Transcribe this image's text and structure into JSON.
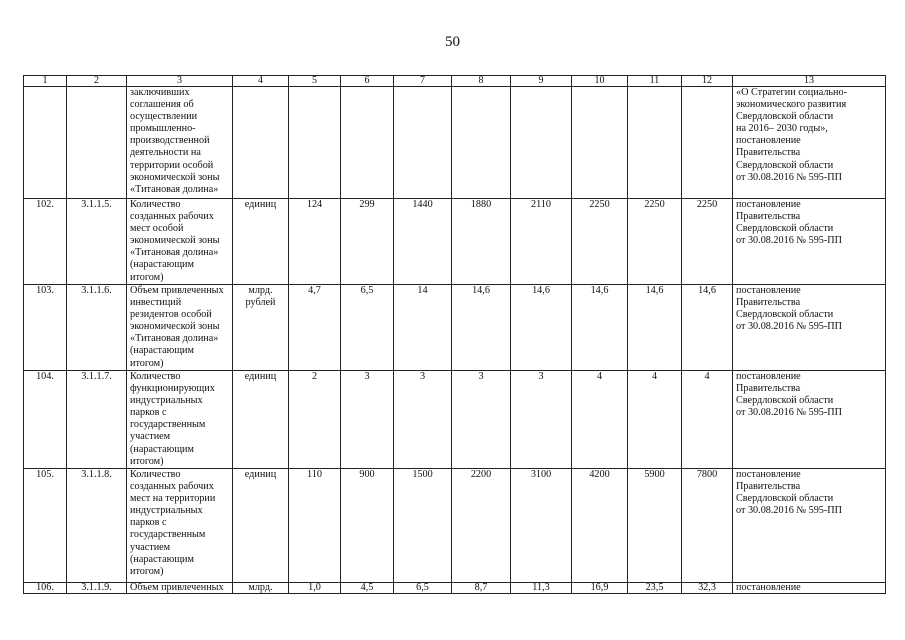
{
  "page_number": "50",
  "header": [
    "1",
    "2",
    "3",
    "4",
    "5",
    "6",
    "7",
    "8",
    "9",
    "10",
    "11",
    "12",
    "13"
  ],
  "rows": [
    {
      "cells": [
        "",
        "",
        "заключивших\nсоглашения об\nосуществлении\nпромышленно-\nпроизводственной\nдеятельности на\nтерритории особой\nэкономической зоны\n«Титановая долина»",
        "",
        "",
        "",
        "",
        "",
        "",
        "",
        "",
        "",
        "«О Стратегии социально-\nэкономического развития\nСвердловской области\nна 2016– 2030 годы»,\nпостановление\nПравительства\nСвердловской области\nот 30.08.2016 № 595-ПП"
      ]
    },
    {
      "cells": [
        "102.",
        "3.1.1.5.",
        "Количество\nсозданных рабочих\nмест особой\nэкономической зоны\n«Титановая долина»\n(нарастающим\nитогом)",
        "единиц",
        "124",
        "299",
        "1440",
        "1880",
        "2110",
        "2250",
        "2250",
        "2250",
        "постановление\nПравительства\nСвердловской области\nот 30.08.2016 № 595-ПП"
      ]
    },
    {
      "cells": [
        "103.",
        "3.1.1.6.",
        "Объем привлеченных\nинвестиций\nрезидентов особой\nэкономической зоны\n«Титановая долина»\n(нарастающим\nитогом)",
        "млрд.\nрублей",
        "4,7",
        "6,5",
        "14",
        "14,6",
        "14,6",
        "14,6",
        "14,6",
        "14,6",
        "постановление\nПравительства\nСвердловской области\nот 30.08.2016 № 595-ПП"
      ]
    },
    {
      "cells": [
        "104.",
        "3.1.1.7.",
        "Количество\nфункционирующих\nиндустриальных\nпарков с\nгосударственным\nучастием\n(нарастающим\nитогом)",
        "единиц",
        "2",
        "3",
        "3",
        "3",
        "3",
        "4",
        "4",
        "4",
        "постановление\nПравительства\nСвердловской области\nот 30.08.2016 № 595-ПП"
      ]
    },
    {
      "cells": [
        "105.",
        "3.1.1.8.",
        "Количество\nсозданных рабочих\nмест на территории\nиндустриальных\nпарков с\nгосударственным\nучастием\n(нарастающим\nитогом)",
        "единиц",
        "110",
        "900",
        "1500",
        "2200",
        "3100",
        "4200",
        "5900",
        "7800",
        "постановление\nПравительства\nСвердловской области\nот 30.08.2016 № 595-ПП"
      ]
    },
    {
      "cells": [
        "106.",
        "3.1.1.9.",
        "Объем привлеченных",
        "млрд.",
        "1,0",
        "4,5",
        "6,5",
        "8,7",
        "11,3",
        "16,9",
        "23,5",
        "32,3",
        "постановление"
      ]
    }
  ]
}
